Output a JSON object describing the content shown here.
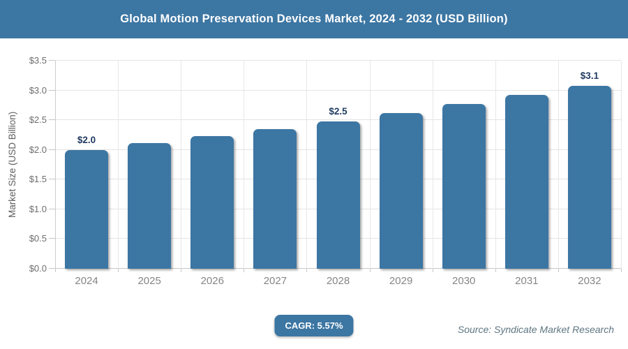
{
  "header": {
    "title": "Global Motion Preservation Devices Market, 2024 - 2032 (USD Billion)"
  },
  "chart_data": {
    "type": "bar",
    "title": "Global Motion Preservation Devices Market, 2024 - 2032 (USD Billion)",
    "categories": [
      "2024",
      "2025",
      "2026",
      "2027",
      "2028",
      "2029",
      "2030",
      "2031",
      "2032"
    ],
    "values": [
      2.0,
      2.11,
      2.23,
      2.35,
      2.48,
      2.62,
      2.77,
      2.92,
      3.08
    ],
    "data_labels": {
      "2024": "$2.0",
      "2028": "$2.5",
      "2032": "$3.1"
    },
    "xlabel": "",
    "ylabel": "Market Size (USD Billion)",
    "ylim": [
      0,
      3.5
    ],
    "ytick_step": 0.5,
    "ytick_labels": [
      "$0.0",
      "$0.5",
      "$1.0",
      "$1.5",
      "$2.0",
      "$2.5",
      "$3.0",
      "$3.5"
    ],
    "grid": "both",
    "legend": "none",
    "bar_color": "#3c76a3",
    "data_label_color": "#1f3a5f"
  },
  "footer": {
    "cagr_badge": "CAGR: 5.57%",
    "source": "Source: Syndicate Market Research"
  },
  "colors": {
    "accent_blue": "#3c76a3",
    "header_text": "#ffffff",
    "axis_text": "#6e6e6e",
    "gridline": "#e4e4e4"
  }
}
